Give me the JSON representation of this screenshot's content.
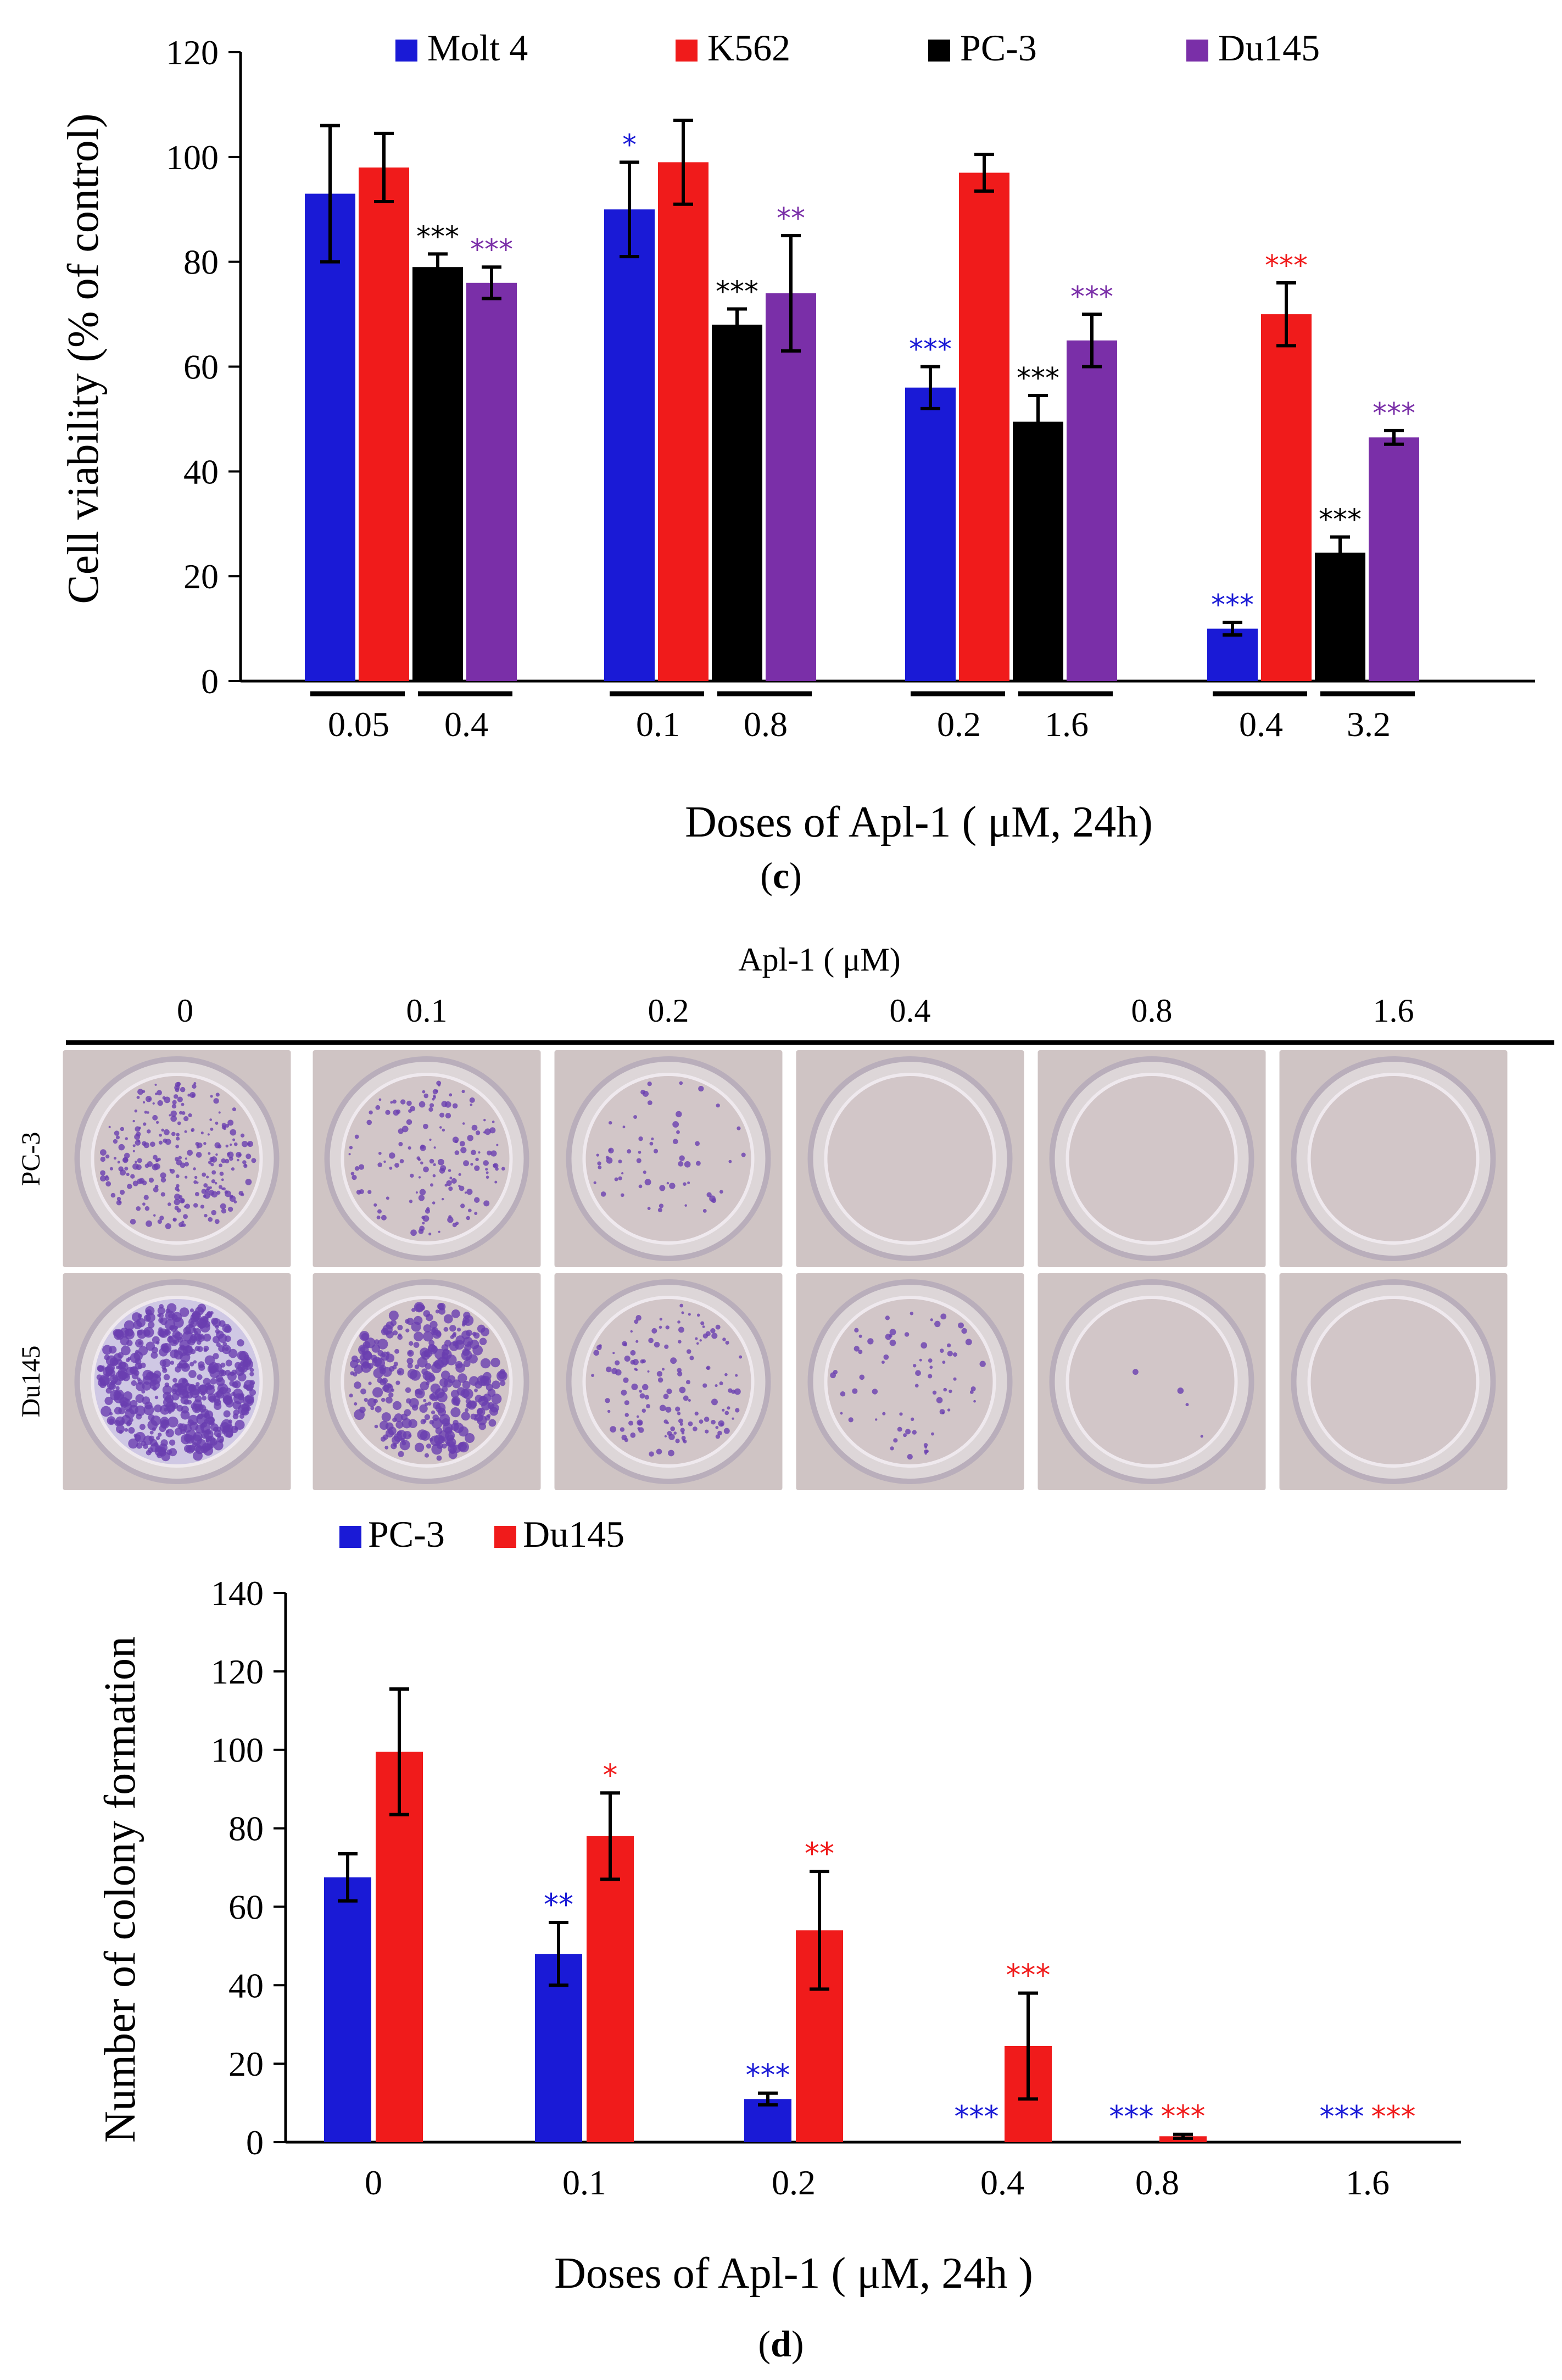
{
  "panel_c": {
    "caption": "c",
    "chart_data": {
      "type": "bar",
      "ylabel": "Cell viability (% of control)",
      "xlabel": "Doses of Apl-1 ( μM, 24h)",
      "ylim": [
        0,
        120
      ],
      "yticks": [
        "0",
        "20",
        "40",
        "60",
        "80",
        "100",
        "120"
      ],
      "legend": [
        "Molt 4",
        "K562",
        "PC-3",
        "Du145"
      ],
      "colors": [
        "#1a1ad6",
        "#f01b1b",
        "#000000",
        "#7a2fa8"
      ],
      "dose_labels": [
        "0.05",
        "0.4",
        "0.1",
        "0.8",
        "0.2",
        "1.6",
        "0.4",
        "3.2"
      ],
      "groups": [
        {
          "values": [
            93,
            98,
            79,
            76
          ],
          "errors": [
            13,
            6.5,
            2.5,
            3
          ],
          "sig": [
            "",
            "",
            "***",
            "***"
          ]
        },
        {
          "values": [
            90,
            99,
            68,
            74
          ],
          "errors": [
            9,
            8,
            3,
            11
          ],
          "sig": [
            "*",
            "",
            "***",
            "**"
          ]
        },
        {
          "values": [
            56,
            97,
            49.5,
            65
          ],
          "errors": [
            4,
            3.5,
            5,
            5
          ],
          "sig": [
            "***",
            "",
            "***",
            "***"
          ]
        },
        {
          "values": [
            10,
            70,
            24.5,
            46.5
          ],
          "errors": [
            1.2,
            6,
            3,
            1.3
          ],
          "sig": [
            "***",
            "***",
            "***",
            "***"
          ]
        }
      ]
    }
  },
  "colony_photos": {
    "title": "Apl-1 ( μM)",
    "dose_headers": [
      "0",
      "0.1",
      "0.2",
      "0.4",
      "0.8",
      "1.6"
    ],
    "row_labels": [
      "PC-3",
      "Du145"
    ]
  },
  "panel_d": {
    "caption": "d",
    "chart_data": {
      "type": "bar",
      "ylabel": "Number of colony formation",
      "xlabel": "Doses of Apl-1 ( μM, 24h )",
      "ylim": [
        0,
        140
      ],
      "yticks": [
        "0",
        "20",
        "40",
        "60",
        "80",
        "100",
        "120",
        "140"
      ],
      "legend": [
        "PC-3",
        "Du145"
      ],
      "colors": [
        "#1a1ad6",
        "#f01b1b"
      ],
      "categories": [
        "0",
        "0.1",
        "0.2",
        "0.4",
        "0.8",
        "1.6"
      ],
      "series": [
        {
          "name": "PC-3",
          "values": [
            67.5,
            48,
            11,
            0,
            0,
            0
          ],
          "errors": [
            6,
            8,
            1.5,
            0,
            0,
            0
          ],
          "sig": [
            "",
            "**",
            "***",
            "***",
            "***",
            "***"
          ]
        },
        {
          "name": "Du145",
          "values": [
            99.5,
            78,
            54,
            24.5,
            1.5,
            0
          ],
          "errors": [
            16,
            11,
            15,
            13.5,
            0.5,
            0
          ],
          "sig": [
            "",
            "*",
            "**",
            "***",
            "***",
            "***"
          ]
        }
      ]
    }
  }
}
